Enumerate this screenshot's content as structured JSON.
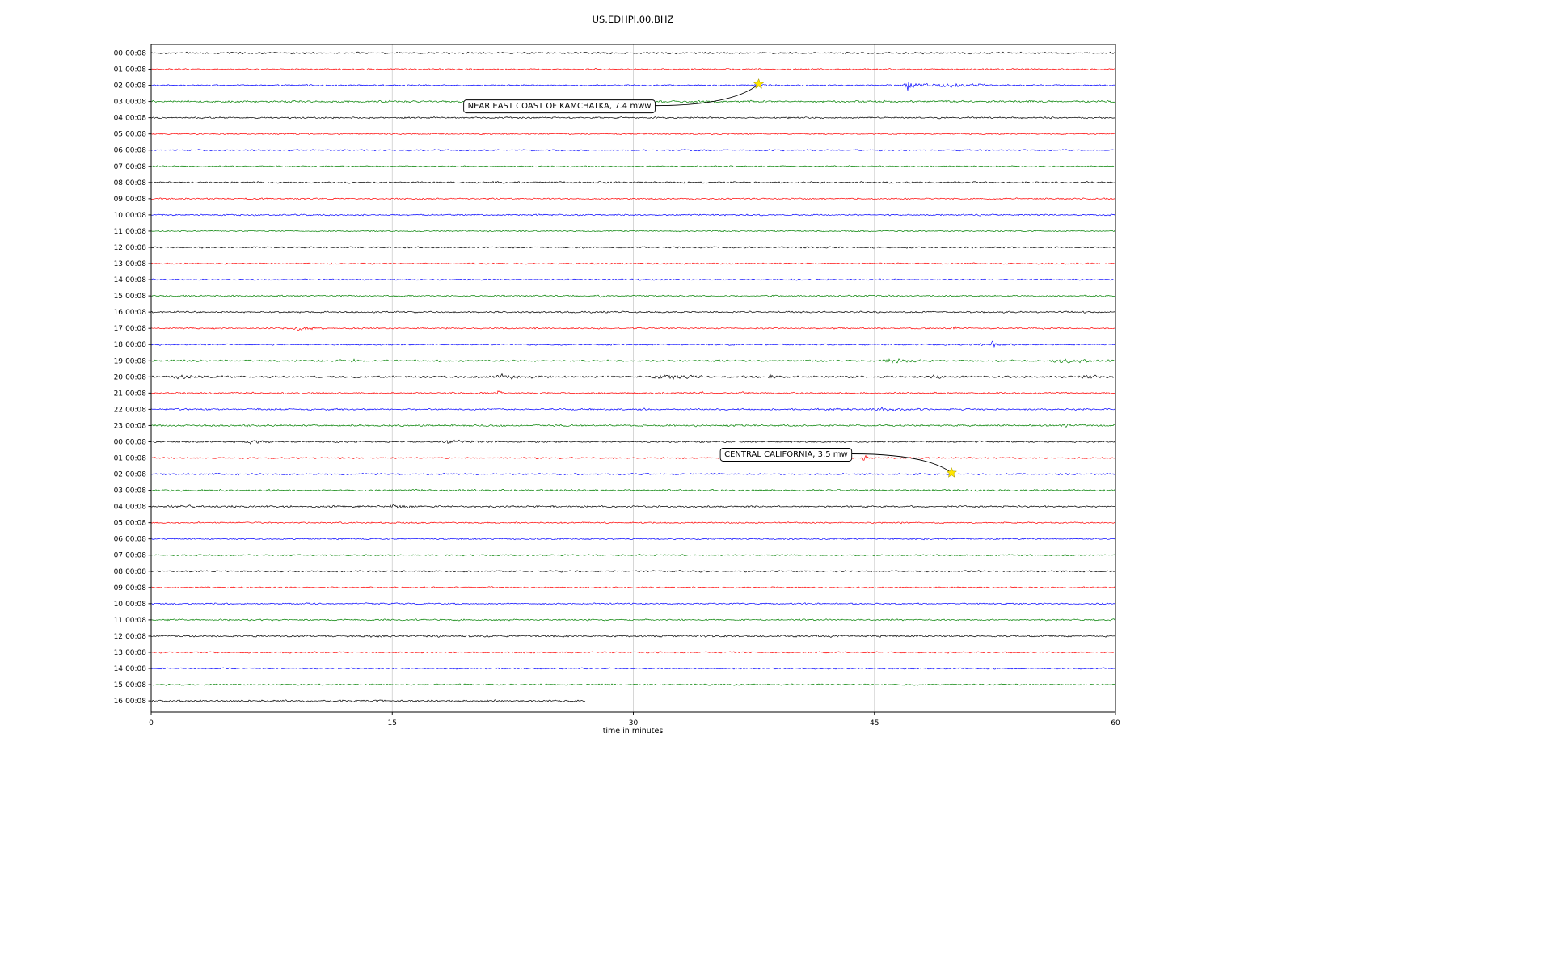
{
  "chart_data": {
    "type": "line",
    "title": "US.EDHPI.00.BHZ",
    "xlabel": "time in minutes",
    "xlim": [
      0,
      60
    ],
    "xticks": [
      0,
      15,
      30,
      45,
      60
    ],
    "grid_minutes": [
      15,
      30,
      45
    ],
    "grid_on": true,
    "trace_color_cycle": [
      "#000000",
      "#ff0000",
      "#0000ff",
      "#008000"
    ],
    "event_marker_color": "#ffe600",
    "rows": [
      {
        "label": "00:00:08",
        "color": "#000000",
        "base": 1.4,
        "bursts": []
      },
      {
        "label": "01:00:08",
        "color": "#ff0000",
        "base": 1.2,
        "bursts": []
      },
      {
        "label": "02:00:08",
        "color": "#0000ff",
        "base": 1.2,
        "bursts": [
          [
            46.8,
            48.5,
            6.5
          ],
          [
            48.5,
            53.5,
            3.2
          ]
        ]
      },
      {
        "label": "03:00:08",
        "color": "#008000",
        "base": 1.6,
        "bursts": []
      },
      {
        "label": "04:00:08",
        "color": "#000000",
        "base": 1.3,
        "bursts": []
      },
      {
        "label": "05:00:08",
        "color": "#ff0000",
        "base": 1.1,
        "bursts": []
      },
      {
        "label": "06:00:08",
        "color": "#0000ff",
        "base": 1.2,
        "bursts": []
      },
      {
        "label": "07:00:08",
        "color": "#008000",
        "base": 1.1,
        "bursts": []
      },
      {
        "label": "08:00:08",
        "color": "#000000",
        "base": 1.4,
        "bursts": []
      },
      {
        "label": "09:00:08",
        "color": "#ff0000",
        "base": 1.2,
        "bursts": []
      },
      {
        "label": "10:00:08",
        "color": "#0000ff",
        "base": 1.2,
        "bursts": []
      },
      {
        "label": "11:00:08",
        "color": "#008000",
        "base": 1.1,
        "bursts": []
      },
      {
        "label": "12:00:08",
        "color": "#000000",
        "base": 1.3,
        "bursts": []
      },
      {
        "label": "13:00:08",
        "color": "#ff0000",
        "base": 1.2,
        "bursts": []
      },
      {
        "label": "14:00:08",
        "color": "#0000ff",
        "base": 1.1,
        "bursts": []
      },
      {
        "label": "15:00:08",
        "color": "#008000",
        "base": 1.2,
        "bursts": [
          [
            27.8,
            28.6,
            1.6
          ]
        ]
      },
      {
        "label": "16:00:08",
        "color": "#000000",
        "base": 1.3,
        "bursts": []
      },
      {
        "label": "17:00:08",
        "color": "#ff0000",
        "base": 1.2,
        "bursts": [
          [
            8.8,
            11.3,
            3.0
          ],
          [
            49.8,
            50.3,
            2.4
          ]
        ]
      },
      {
        "label": "18:00:08",
        "color": "#0000ff",
        "base": 1.2,
        "bursts": [
          [
            50.8,
            53.8,
            1.2
          ],
          [
            52.2,
            52.7,
            4.5
          ]
        ]
      },
      {
        "label": "19:00:08",
        "color": "#008000",
        "base": 1.5,
        "bursts": [
          [
            12.4,
            13.0,
            1.8
          ],
          [
            45.4,
            48.6,
            2.2
          ],
          [
            55.6,
            60,
            2.6
          ]
        ]
      },
      {
        "label": "20:00:08",
        "color": "#000000",
        "base": 1.7,
        "bursts": [
          [
            0.8,
            4.2,
            2.2
          ],
          [
            21.4,
            24.2,
            2.6
          ],
          [
            31.0,
            35.0,
            2.6
          ],
          [
            38.3,
            39.3,
            3.2
          ],
          [
            48.4,
            49.4,
            2.2
          ],
          [
            57.6,
            60,
            3.2
          ]
        ]
      },
      {
        "label": "21:00:08",
        "color": "#ff0000",
        "base": 1.3,
        "bursts": [
          [
            21.5,
            21.9,
            4.5
          ],
          [
            34.2,
            34.6,
            2.6
          ],
          [
            36.7,
            37.1,
            2.2
          ],
          [
            48.3,
            48.8,
            3.8
          ]
        ]
      },
      {
        "label": "22:00:08",
        "color": "#0000ff",
        "base": 1.3,
        "bursts": [
          [
            30.1,
            30.9,
            2.8
          ],
          [
            41.9,
            44.1,
            2.2
          ],
          [
            44.6,
            48.2,
            2.4
          ]
        ]
      },
      {
        "label": "23:00:08",
        "color": "#008000",
        "base": 1.5,
        "bursts": [
          [
            56.8,
            57.2,
            3.6
          ]
        ]
      },
      {
        "label": "00:00:08",
        "color": "#000000",
        "base": 1.3,
        "bursts": [
          [
            5.9,
            7.6,
            3.2
          ],
          [
            17.9,
            21.6,
            2.4
          ]
        ]
      },
      {
        "label": "01:00:08",
        "color": "#ff0000",
        "base": 1.2,
        "bursts": [
          [
            36.4,
            38.6,
            2.8
          ],
          [
            44.2,
            44.7,
            5.0
          ]
        ]
      },
      {
        "label": "02:00:08",
        "color": "#0000ff",
        "base": 1.3,
        "bursts": [
          [
            5.2,
            5.7,
            3.6
          ]
        ]
      },
      {
        "label": "03:00:08",
        "color": "#008000",
        "base": 1.5,
        "bursts": [
          [
            9.6,
            10.1,
            3.2
          ],
          [
            18.3,
            18.8,
            2.6
          ]
        ]
      },
      {
        "label": "04:00:08",
        "color": "#000000",
        "base": 1.4,
        "bursts": [
          [
            0,
            14,
            1.0
          ],
          [
            14.6,
            17.4,
            2.8
          ]
        ]
      },
      {
        "label": "05:00:08",
        "color": "#ff0000",
        "base": 1.2,
        "bursts": []
      },
      {
        "label": "06:00:08",
        "color": "#0000ff",
        "base": 1.2,
        "bursts": []
      },
      {
        "label": "07:00:08",
        "color": "#008000",
        "base": 1.2,
        "bursts": []
      },
      {
        "label": "08:00:08",
        "color": "#000000",
        "base": 1.3,
        "bursts": []
      },
      {
        "label": "09:00:08",
        "color": "#ff0000",
        "base": 1.2,
        "bursts": []
      },
      {
        "label": "10:00:08",
        "color": "#0000ff",
        "base": 1.2,
        "bursts": []
      },
      {
        "label": "11:00:08",
        "color": "#008000",
        "base": 1.3,
        "bursts": []
      },
      {
        "label": "12:00:08",
        "color": "#000000",
        "base": 1.6,
        "bursts": []
      },
      {
        "label": "13:00:08",
        "color": "#ff0000",
        "base": 1.2,
        "bursts": []
      },
      {
        "label": "14:00:08",
        "color": "#0000ff",
        "base": 1.1,
        "bursts": []
      },
      {
        "label": "15:00:08",
        "color": "#008000",
        "base": 1.2,
        "bursts": []
      },
      {
        "label": "16:00:08",
        "color": "#000000",
        "base": 1.5,
        "end_minute": 27,
        "bursts": []
      }
    ],
    "events": [
      {
        "label": "NEAR EAST COAST OF KAMCHATKA, 7.4 mww",
        "row": 2,
        "marker_minute": 37.8,
        "box_minute": 25.4,
        "box_row": 3.25
      },
      {
        "label": "CENTRAL CALIFORNIA, 3.5 mw",
        "row": 26,
        "marker_minute": 49.8,
        "box_minute": 39.5,
        "box_row": 24.75
      }
    ]
  }
}
